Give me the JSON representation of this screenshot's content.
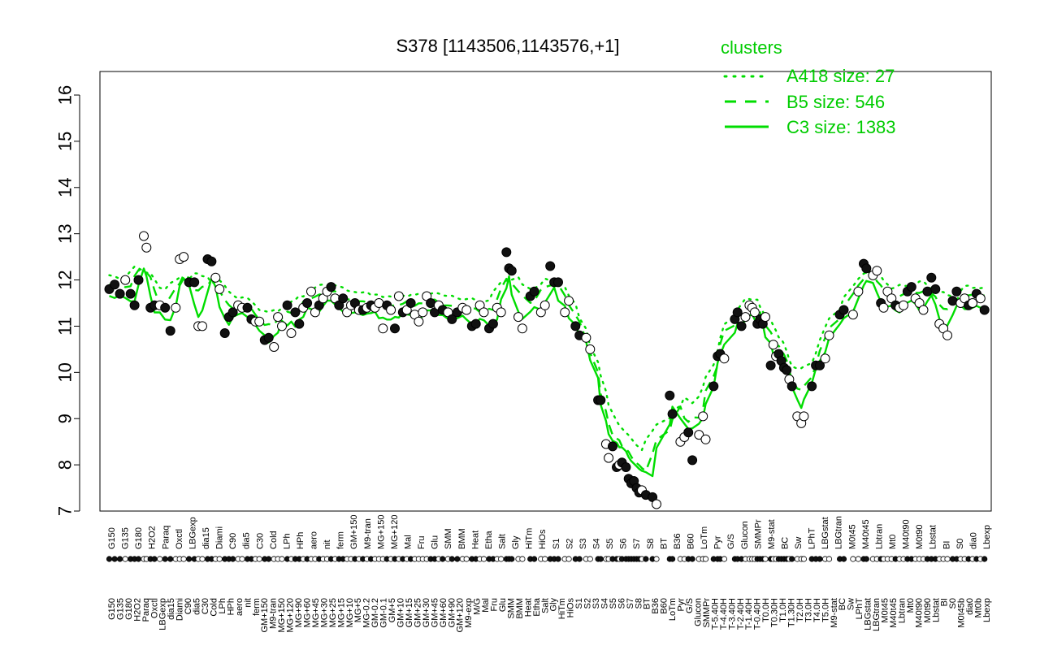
{
  "chart_data": {
    "type": "line",
    "title": "S378 [1143506,1143576,+1]",
    "xlabel": "",
    "ylabel": "",
    "ylim": [
      7,
      16
    ],
    "yticks": [
      7,
      8,
      9,
      10,
      11,
      12,
      13,
      14,
      15,
      16
    ],
    "grid": false,
    "legend_title": "clusters",
    "legend_position": "top-right",
    "colors": {
      "lines": "#00dd00",
      "legend_text": "#00cc00",
      "points_fill_dark": "#111111",
      "points_fill_light": "#ffffff"
    },
    "series": [
      {
        "name": "A418 size: 27",
        "style": "dotted"
      },
      {
        "name": "B5 size: 546",
        "style": "dashed"
      },
      {
        "name": "C3 size: 1383",
        "style": "solid"
      }
    ],
    "x_labels": [
      "G150",
      "G135",
      "G180",
      "H2O2",
      "Paraq",
      "Oxctl",
      "LBGexp",
      "dia15",
      "Diami",
      "C90",
      "dia5",
      "C30",
      "Cold",
      "LPh",
      "HPh",
      "aero",
      "nit",
      "ferm",
      "GM+150",
      "M9-tran",
      "MG+150",
      "MG+120",
      "MG+90",
      "MG+60",
      "MG+45",
      "MG+30",
      "MG+25",
      "MG+15",
      "MG+10",
      "MG+5",
      "MG-0.2",
      "GM-0.2",
      "GM-0.1",
      "GM+5",
      "GM+10",
      "GM+15",
      "GM+25",
      "GM+30",
      "GM+45",
      "GM+60",
      "GM+90",
      "GM+120",
      "M9-exp",
      "M/G",
      "Mal",
      "Fru",
      "Glu",
      "SMM",
      "BMM",
      "Heat",
      "Etha",
      "Salt",
      "Gly",
      "HiTm",
      "HiOs",
      "S1",
      "S2",
      "S3",
      "S4",
      "S5",
      "S6",
      "S7",
      "S8",
      "BT",
      "B36",
      "B60",
      "LoTm",
      "Pyr",
      "G/S",
      "Glucon",
      "SMMPr",
      "T-5.40H",
      "T-4.40H",
      "T-3.40H",
      "T-2.40H",
      "T-1.40H",
      "T-0.40H",
      "T0.0H",
      "T0.30H",
      "T1.0H",
      "T1.30H",
      "T2.0H",
      "T3.0H",
      "T4.0H",
      "T5.0H",
      "M9-stat",
      "BC",
      "Sw",
      "LPhT",
      "LBGstat",
      "LBGtran",
      "M0t45",
      "M40t45",
      "Lbtran",
      "Mt0",
      "M40t90",
      "M0t90",
      "Lbstat",
      "BI",
      "S0",
      "M0t45b",
      "dia0",
      "Mt0b",
      "Lbexp"
    ],
    "x_labels_shown_top": [
      "G150",
      "G135",
      "G180",
      "H2O2",
      "Paraq",
      "Oxctl",
      "LBGexp",
      "dia15",
      "Diami",
      "C90",
      "dia5",
      "C30",
      "Cold",
      "LPh",
      "HPh",
      "aero",
      "nit",
      "ferm",
      "GM+150",
      "M9-tran",
      "MG+150",
      "MG+120",
      "Mal",
      "Fru",
      "Glu",
      "SMM",
      "BMM",
      "Heat",
      "Etha",
      "Salt",
      "Gly",
      "HiTm",
      "HiOs",
      "S1",
      "S2",
      "S3",
      "S4",
      "S5",
      "S6",
      "S7",
      "S8",
      "BT",
      "B36",
      "B60",
      "LoTm",
      "Pyr",
      "G/S",
      "Glucon",
      "SMMPr",
      "M9-stat",
      "BC",
      "Sw",
      "LPhT",
      "LBGstat",
      "LBGtran",
      "M0t45",
      "M40t45",
      "Lbtran",
      "Mt0",
      "M40t90",
      "M0t90",
      "Lbstat",
      "BI",
      "S0",
      "dia0",
      "Lbexp"
    ],
    "points": [
      [
        0.4,
        11.8,
        "d"
      ],
      [
        0.8,
        11.9,
        "d"
      ],
      [
        1.2,
        11.7,
        "d"
      ],
      [
        1.6,
        12.0,
        "l"
      ],
      [
        2.0,
        11.7,
        "d"
      ],
      [
        2.3,
        11.45,
        "d"
      ],
      [
        2.6,
        12.0,
        "d"
      ],
      [
        3.0,
        12.95,
        "l"
      ],
      [
        3.2,
        12.7,
        "l"
      ],
      [
        3.5,
        11.4,
        "d"
      ],
      [
        3.8,
        11.45,
        "d"
      ],
      [
        4.2,
        11.45,
        "l"
      ],
      [
        4.6,
        11.4,
        "d"
      ],
      [
        5.0,
        10.9,
        "d"
      ],
      [
        5.4,
        11.4,
        "l"
      ],
      [
        5.7,
        12.45,
        "l"
      ],
      [
        6.0,
        12.5,
        "l"
      ],
      [
        6.4,
        11.95,
        "d"
      ],
      [
        6.8,
        11.95,
        "d"
      ],
      [
        7.1,
        11.0,
        "l"
      ],
      [
        7.4,
        11.0,
        "l"
      ],
      [
        7.8,
        12.45,
        "d"
      ],
      [
        8.1,
        12.4,
        "d"
      ],
      [
        8.4,
        12.05,
        "l"
      ],
      [
        8.7,
        11.8,
        "l"
      ],
      [
        9.1,
        10.85,
        "d"
      ],
      [
        9.4,
        11.2,
        "d"
      ],
      [
        9.7,
        11.3,
        "d"
      ],
      [
        10.1,
        11.45,
        "l"
      ],
      [
        10.4,
        11.4,
        "l"
      ],
      [
        10.8,
        11.4,
        "d"
      ],
      [
        11.1,
        11.15,
        "d"
      ],
      [
        11.4,
        11.1,
        "l"
      ],
      [
        11.7,
        11.1,
        "l"
      ],
      [
        12.1,
        10.7,
        "d"
      ],
      [
        12.4,
        10.75,
        "d"
      ],
      [
        12.8,
        10.55,
        "l"
      ],
      [
        13.1,
        11.2,
        "l"
      ],
      [
        13.4,
        11.0,
        "l"
      ],
      [
        13.8,
        11.45,
        "d"
      ],
      [
        14.1,
        10.85,
        "l"
      ],
      [
        14.4,
        11.3,
        "d"
      ],
      [
        14.7,
        11.05,
        "d"
      ],
      [
        15.0,
        11.4,
        "l"
      ],
      [
        15.3,
        11.5,
        "d"
      ],
      [
        15.6,
        11.75,
        "l"
      ],
      [
        15.9,
        11.3,
        "l"
      ],
      [
        16.2,
        11.45,
        "d"
      ],
      [
        16.5,
        11.6,
        "l"
      ],
      [
        16.8,
        11.75,
        "l"
      ],
      [
        17.1,
        11.85,
        "d"
      ],
      [
        17.4,
        11.6,
        "l"
      ],
      [
        17.7,
        11.45,
        "d"
      ],
      [
        18.0,
        11.6,
        "d"
      ],
      [
        18.3,
        11.3,
        "l"
      ],
      [
        18.6,
        11.45,
        "l"
      ],
      [
        18.9,
        11.5,
        "d"
      ],
      [
        19.2,
        11.35,
        "l"
      ],
      [
        19.5,
        11.35,
        "d"
      ],
      [
        19.8,
        11.4,
        "l"
      ],
      [
        20.1,
        11.45,
        "d"
      ],
      [
        20.4,
        11.4,
        "l"
      ],
      [
        20.7,
        11.5,
        "l"
      ],
      [
        21.0,
        10.95,
        "l"
      ],
      [
        21.3,
        11.45,
        "d"
      ],
      [
        21.6,
        11.35,
        "l"
      ],
      [
        21.9,
        10.95,
        "d"
      ],
      [
        22.2,
        11.65,
        "l"
      ],
      [
        22.5,
        11.3,
        "d"
      ],
      [
        22.8,
        11.35,
        "l"
      ],
      [
        23.1,
        11.5,
        "d"
      ],
      [
        23.4,
        11.25,
        "l"
      ],
      [
        23.7,
        11.1,
        "l"
      ],
      [
        24.0,
        11.3,
        "l"
      ],
      [
        24.3,
        11.65,
        "l"
      ],
      [
        24.6,
        11.5,
        "d"
      ],
      [
        24.9,
        11.3,
        "d"
      ],
      [
        25.2,
        11.45,
        "l"
      ],
      [
        25.5,
        11.35,
        "d"
      ],
      [
        25.9,
        11.3,
        "l"
      ],
      [
        26.2,
        11.15,
        "d"
      ],
      [
        26.6,
        11.3,
        "d"
      ],
      [
        27.0,
        11.4,
        "l"
      ],
      [
        27.3,
        11.35,
        "l"
      ],
      [
        27.7,
        11.0,
        "d"
      ],
      [
        28.0,
        11.05,
        "d"
      ],
      [
        28.3,
        11.45,
        "l"
      ],
      [
        28.6,
        11.3,
        "l"
      ],
      [
        29.0,
        10.95,
        "d"
      ],
      [
        29.3,
        11.05,
        "d"
      ],
      [
        29.6,
        11.4,
        "l"
      ],
      [
        29.9,
        11.3,
        "l"
      ],
      [
        30.3,
        12.6,
        "d"
      ],
      [
        30.5,
        12.25,
        "d"
      ],
      [
        30.7,
        12.2,
        "d"
      ],
      [
        31.2,
        11.2,
        "l"
      ],
      [
        31.5,
        10.95,
        "l"
      ],
      [
        32.1,
        11.65,
        "d"
      ],
      [
        32.4,
        11.75,
        "d"
      ],
      [
        32.9,
        11.3,
        "l"
      ],
      [
        33.2,
        11.45,
        "l"
      ],
      [
        33.6,
        12.3,
        "d"
      ],
      [
        33.9,
        11.95,
        "d"
      ],
      [
        34.2,
        11.95,
        "d"
      ],
      [
        34.7,
        11.3,
        "l"
      ],
      [
        35.0,
        11.55,
        "l"
      ],
      [
        35.5,
        11.0,
        "d"
      ],
      [
        35.8,
        10.8,
        "d"
      ],
      [
        36.3,
        10.75,
        "l"
      ],
      [
        36.6,
        10.5,
        "l"
      ],
      [
        37.2,
        9.4,
        "d"
      ],
      [
        37.4,
        9.4,
        "d"
      ],
      [
        37.8,
        8.45,
        "l"
      ],
      [
        38.0,
        8.15,
        "l"
      ],
      [
        38.3,
        8.4,
        "d"
      ],
      [
        38.6,
        7.95,
        "d"
      ],
      [
        38.8,
        8.0,
        "l"
      ],
      [
        39.0,
        8.05,
        "d"
      ],
      [
        39.3,
        7.95,
        "d"
      ],
      [
        39.5,
        7.7,
        "d"
      ],
      [
        39.7,
        7.6,
        "d"
      ],
      [
        39.9,
        7.65,
        "d"
      ],
      [
        40.1,
        7.5,
        "d"
      ],
      [
        40.3,
        7.4,
        "d"
      ],
      [
        40.5,
        7.45,
        "l"
      ],
      [
        40.8,
        7.35,
        "d"
      ],
      [
        41.3,
        7.3,
        "d"
      ],
      [
        41.6,
        7.15,
        "l"
      ],
      [
        42.6,
        9.5,
        "d"
      ],
      [
        42.8,
        9.1,
        "d"
      ],
      [
        43.4,
        8.5,
        "l"
      ],
      [
        43.7,
        8.6,
        "l"
      ],
      [
        44.0,
        8.7,
        "d"
      ],
      [
        44.3,
        8.1,
        "d"
      ],
      [
        44.8,
        8.65,
        "l"
      ],
      [
        45.1,
        9.05,
        "l"
      ],
      [
        45.3,
        8.55,
        "l"
      ],
      [
        45.9,
        9.7,
        "d"
      ],
      [
        46.2,
        10.35,
        "d"
      ],
      [
        46.4,
        10.4,
        "d"
      ],
      [
        46.7,
        10.3,
        "l"
      ],
      [
        47.5,
        11.15,
        "d"
      ],
      [
        47.7,
        11.3,
        "d"
      ],
      [
        48.0,
        11.0,
        "d"
      ],
      [
        48.3,
        11.2,
        "l"
      ],
      [
        48.6,
        11.45,
        "l"
      ],
      [
        48.8,
        11.4,
        "l"
      ],
      [
        49.0,
        11.3,
        "l"
      ],
      [
        49.2,
        11.05,
        "d"
      ],
      [
        49.4,
        11.15,
        "d"
      ],
      [
        49.6,
        11.05,
        "d"
      ],
      [
        49.8,
        11.2,
        "l"
      ],
      [
        50.2,
        10.15,
        "d"
      ],
      [
        50.4,
        10.6,
        "l"
      ],
      [
        50.6,
        10.35,
        "l"
      ],
      [
        50.8,
        10.4,
        "d"
      ],
      [
        51.0,
        10.25,
        "d"
      ],
      [
        51.2,
        10.1,
        "d"
      ],
      [
        51.4,
        10.05,
        "d"
      ],
      [
        51.6,
        9.85,
        "l"
      ],
      [
        51.8,
        9.7,
        "d"
      ],
      [
        52.2,
        9.05,
        "l"
      ],
      [
        52.5,
        8.9,
        "l"
      ],
      [
        52.7,
        9.05,
        "l"
      ],
      [
        53.3,
        9.7,
        "d"
      ],
      [
        53.6,
        10.15,
        "d"
      ],
      [
        53.9,
        10.15,
        "d"
      ],
      [
        54.3,
        10.3,
        "l"
      ],
      [
        54.6,
        10.8,
        "l"
      ],
      [
        55.4,
        11.25,
        "d"
      ],
      [
        55.7,
        11.35,
        "d"
      ],
      [
        56.4,
        11.25,
        "l"
      ],
      [
        56.8,
        11.75,
        "l"
      ],
      [
        57.2,
        12.35,
        "d"
      ],
      [
        57.4,
        12.25,
        "d"
      ],
      [
        57.9,
        12.1,
        "l"
      ],
      [
        58.2,
        12.2,
        "l"
      ],
      [
        58.5,
        11.5,
        "d"
      ],
      [
        58.7,
        11.4,
        "l"
      ],
      [
        59.0,
        11.75,
        "l"
      ],
      [
        59.3,
        11.6,
        "l"
      ],
      [
        59.6,
        11.45,
        "d"
      ],
      [
        59.9,
        11.4,
        "l"
      ],
      [
        60.2,
        11.45,
        "l"
      ],
      [
        60.5,
        11.75,
        "d"
      ],
      [
        60.8,
        11.85,
        "d"
      ],
      [
        61.1,
        11.6,
        "l"
      ],
      [
        61.4,
        11.5,
        "l"
      ],
      [
        61.7,
        11.35,
        "l"
      ],
      [
        62.0,
        11.75,
        "d"
      ],
      [
        62.3,
        12.05,
        "d"
      ],
      [
        62.6,
        11.8,
        "d"
      ],
      [
        62.9,
        11.05,
        "l"
      ],
      [
        63.2,
        10.95,
        "l"
      ],
      [
        63.5,
        10.8,
        "l"
      ],
      [
        63.9,
        11.55,
        "d"
      ],
      [
        64.2,
        11.75,
        "d"
      ],
      [
        64.5,
        11.5,
        "l"
      ],
      [
        64.8,
        11.6,
        "l"
      ],
      [
        65.1,
        11.45,
        "d"
      ],
      [
        65.4,
        11.5,
        "l"
      ],
      [
        65.7,
        11.7,
        "d"
      ],
      [
        66.0,
        11.6,
        "l"
      ],
      [
        66.3,
        11.35,
        "d"
      ]
    ]
  }
}
